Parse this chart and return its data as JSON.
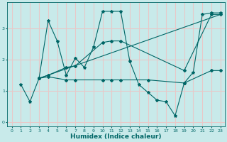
{
  "title": "",
  "xlabel": "Humidex (Indice chaleur)",
  "background_color": "#c8eaea",
  "grid_color": "#e8c8c8",
  "line_color": "#006666",
  "xlim": [
    -0.5,
    23.5
  ],
  "ylim": [
    -0.15,
    3.85
  ],
  "xticks": [
    0,
    1,
    2,
    3,
    4,
    5,
    6,
    7,
    8,
    9,
    10,
    11,
    12,
    13,
    14,
    15,
    16,
    17,
    18,
    19,
    20,
    21,
    22,
    23
  ],
  "yticks": [
    0,
    1,
    2,
    3
  ],
  "line1_x": [
    1,
    2,
    3,
    4,
    5,
    6,
    7,
    8,
    9,
    10,
    11,
    12,
    13,
    14,
    15,
    16,
    17,
    18,
    19,
    20,
    21,
    22,
    23
  ],
  "line1_y": [
    1.2,
    0.65,
    1.4,
    3.25,
    2.6,
    1.5,
    2.05,
    1.75,
    2.4,
    3.55,
    3.55,
    3.55,
    1.95,
    1.2,
    0.95,
    0.7,
    0.65,
    0.2,
    1.25,
    1.6,
    3.45,
    3.5,
    3.5
  ],
  "line2_x": [
    3,
    4,
    6,
    7,
    10,
    11,
    12,
    19,
    22,
    23
  ],
  "line2_y": [
    1.4,
    1.5,
    1.75,
    1.8,
    2.55,
    2.6,
    2.6,
    1.65,
    3.45,
    3.45
  ],
  "line3_x": [
    3,
    23
  ],
  "line3_y": [
    1.4,
    3.45
  ],
  "line4_x": [
    3,
    4,
    6,
    7,
    10,
    11,
    12,
    15,
    19,
    22,
    23
  ],
  "line4_y": [
    1.4,
    1.45,
    1.35,
    1.35,
    1.35,
    1.35,
    1.35,
    1.35,
    1.25,
    1.65,
    1.65
  ]
}
